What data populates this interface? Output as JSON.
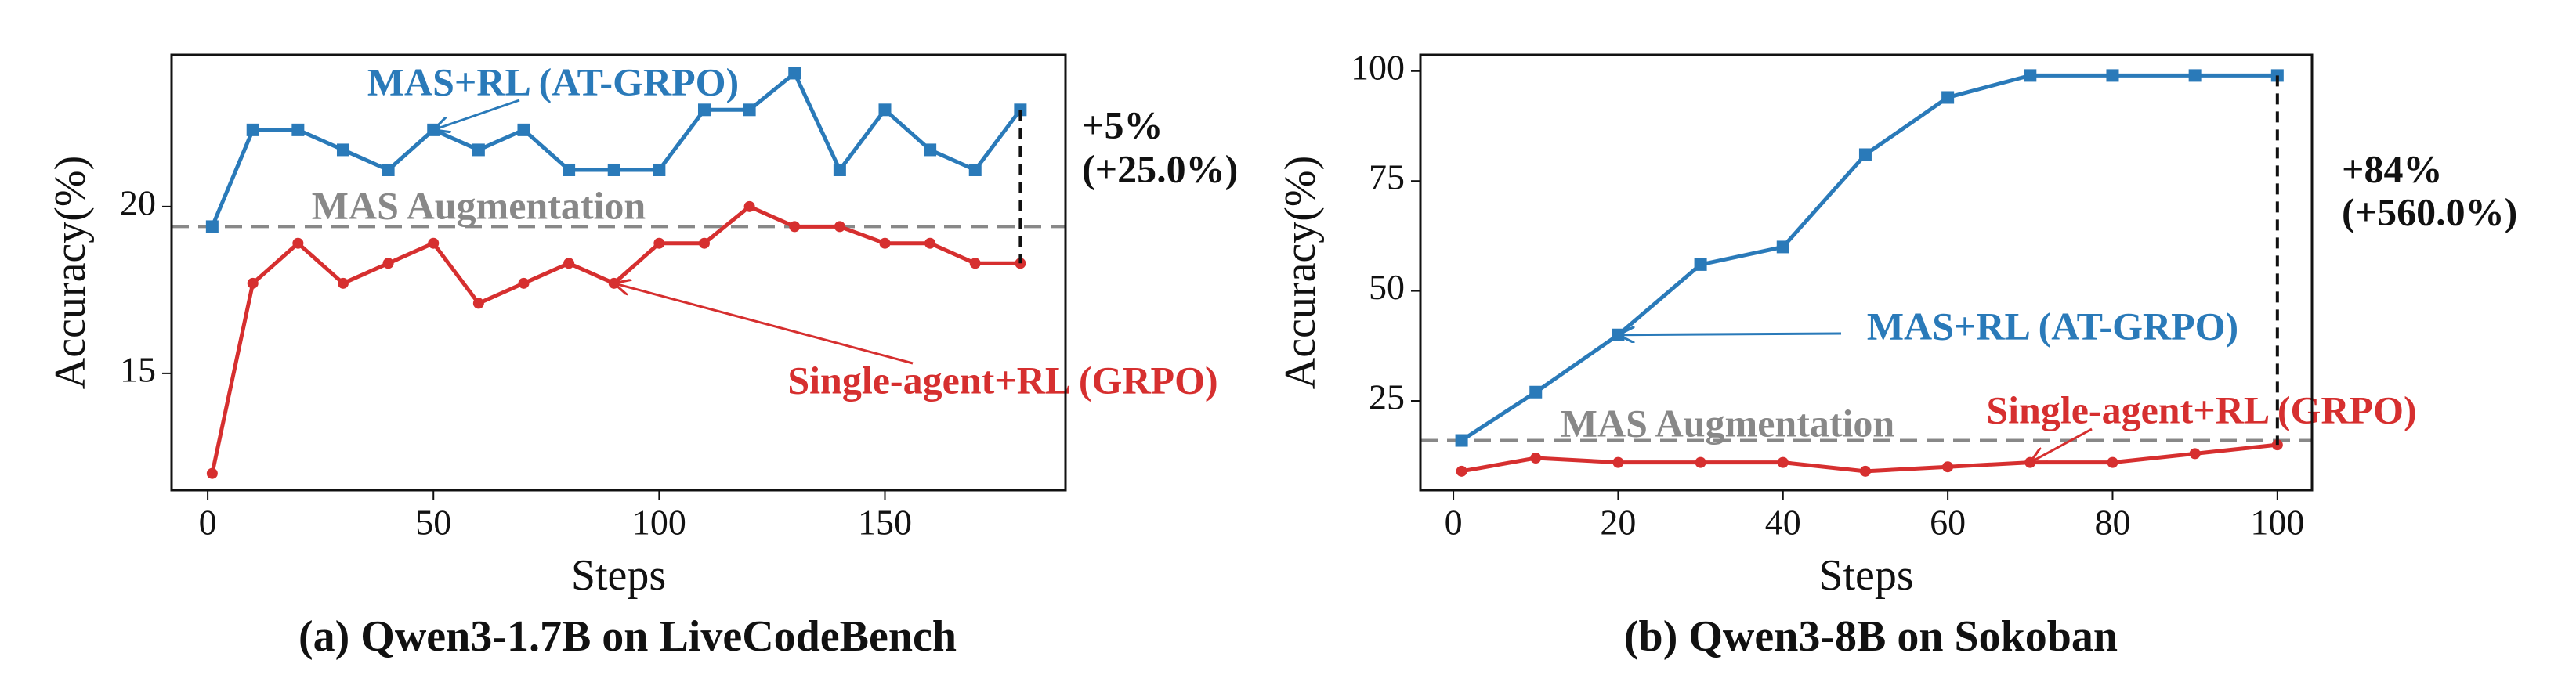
{
  "chart_data": [
    {
      "type": "line",
      "title": "(a) Qwen3-1.7B on LiveCodeBench",
      "xlabel": "Steps",
      "ylabel": "Accuracy(%)",
      "x": [
        1,
        10,
        20,
        30,
        40,
        50,
        60,
        70,
        80,
        90,
        100,
        110,
        120,
        130,
        140,
        150,
        160,
        170,
        180
      ],
      "series": [
        {
          "name": "MAS+RL (AT-GRPO)",
          "color": "#2a7ab9",
          "marker": "square",
          "values": [
            19.4,
            22.3,
            22.3,
            21.7,
            21.1,
            22.3,
            21.7,
            22.3,
            21.1,
            21.1,
            21.1,
            22.9,
            22.9,
            24.0,
            21.1,
            22.9,
            21.7,
            21.1,
            22.9
          ]
        },
        {
          "name": "Single-agent+RL (GRPO)",
          "color": "#d62f2f",
          "marker": "circle",
          "values": [
            12.0,
            17.7,
            18.9,
            17.7,
            18.3,
            18.9,
            17.1,
            17.7,
            18.3,
            17.7,
            18.9,
            18.9,
            20.0,
            19.4,
            19.4,
            18.9,
            18.9,
            18.3,
            18.3
          ]
        }
      ],
      "baseline": {
        "name": "MAS Augmentation",
        "value": 19.4,
        "color": "#888888"
      },
      "gain_labels": [
        "+5%",
        "(+25.0%)"
      ],
      "xlim": [
        -8,
        190
      ],
      "ylim": [
        11.5,
        24.55
      ],
      "xticks": [
        0,
        50,
        100,
        150
      ],
      "yticks": [
        15,
        20
      ]
    },
    {
      "type": "line",
      "title": "(b) Qwen3-8B on Sokoban",
      "xlabel": "Steps",
      "ylabel": "Accuracy(%)",
      "x": [
        1,
        10,
        20,
        30,
        40,
        50,
        60,
        70,
        80,
        90,
        100
      ],
      "series": [
        {
          "name": "MAS+RL (AT-GRPO)",
          "color": "#2a7ab9",
          "marker": "square",
          "values": [
            16,
            27,
            40,
            56,
            60,
            81,
            94,
            99,
            99,
            99,
            99
          ]
        },
        {
          "name": "Single-agent+RL (GRPO)",
          "color": "#d62f2f",
          "marker": "circle",
          "values": [
            9,
            12,
            11,
            11,
            11,
            9,
            10,
            11,
            11,
            13,
            15
          ]
        }
      ],
      "baseline": {
        "name": "MAS Augmentation",
        "value": 16,
        "color": "#888888"
      },
      "gain_labels": [
        "+84%",
        "(+560.0%)"
      ],
      "xlim": [
        -4,
        104.2
      ],
      "ylim": [
        4.7,
        103.7
      ],
      "xticks": [
        0,
        20,
        40,
        60,
        80,
        100
      ],
      "yticks": [
        25,
        50,
        75,
        100
      ]
    }
  ]
}
